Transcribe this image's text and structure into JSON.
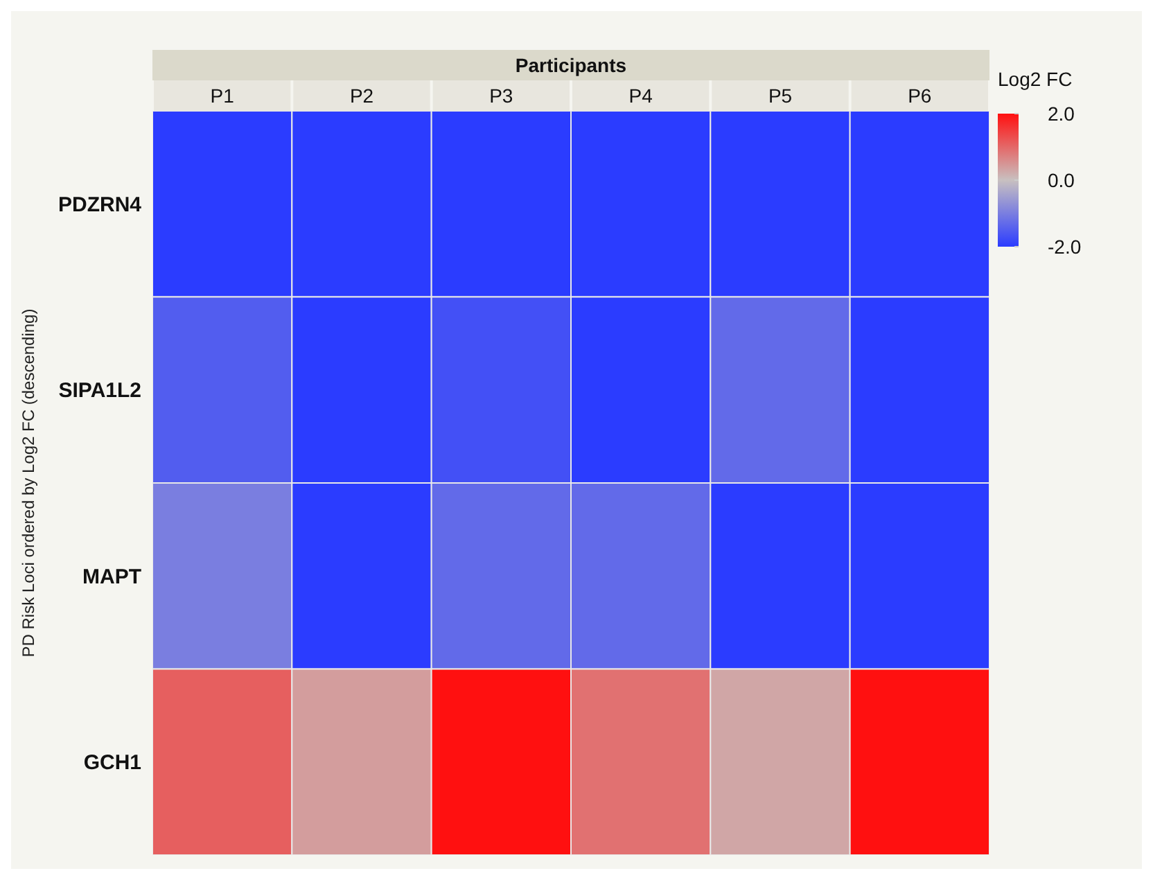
{
  "chart_data": {
    "type": "heatmap",
    "xlabel": "Participants",
    "ylabel": "PD Risk Loci ordered by Log2 FC (descending)",
    "clabel": "Log2 FC",
    "categories": [
      "P1",
      "P2",
      "P3",
      "P4",
      "P5",
      "P6"
    ],
    "y_categories": [
      "PDZRN4",
      "SIPA1L2",
      "MAPT",
      "GCH1"
    ],
    "cells": [
      [
        -2.0,
        -2.0,
        -2.0,
        -2.0,
        -2.0,
        -2.0
      ],
      [
        -1.5,
        -2.0,
        -1.7,
        -2.0,
        -1.3,
        -2.0
      ],
      [
        -1.0,
        -2.0,
        -1.3,
        -1.3,
        -2.0,
        -2.0
      ],
      [
        1.1,
        0.4,
        2.0,
        0.9,
        0.3,
        2.0
      ]
    ],
    "clim": [
      -2.0,
      2.0
    ],
    "cticks": [
      {
        "value": -2,
        "label": "-2.0"
      },
      {
        "value": 0,
        "label": "0.0"
      },
      {
        "value": 2,
        "label": "2.0"
      }
    ]
  }
}
